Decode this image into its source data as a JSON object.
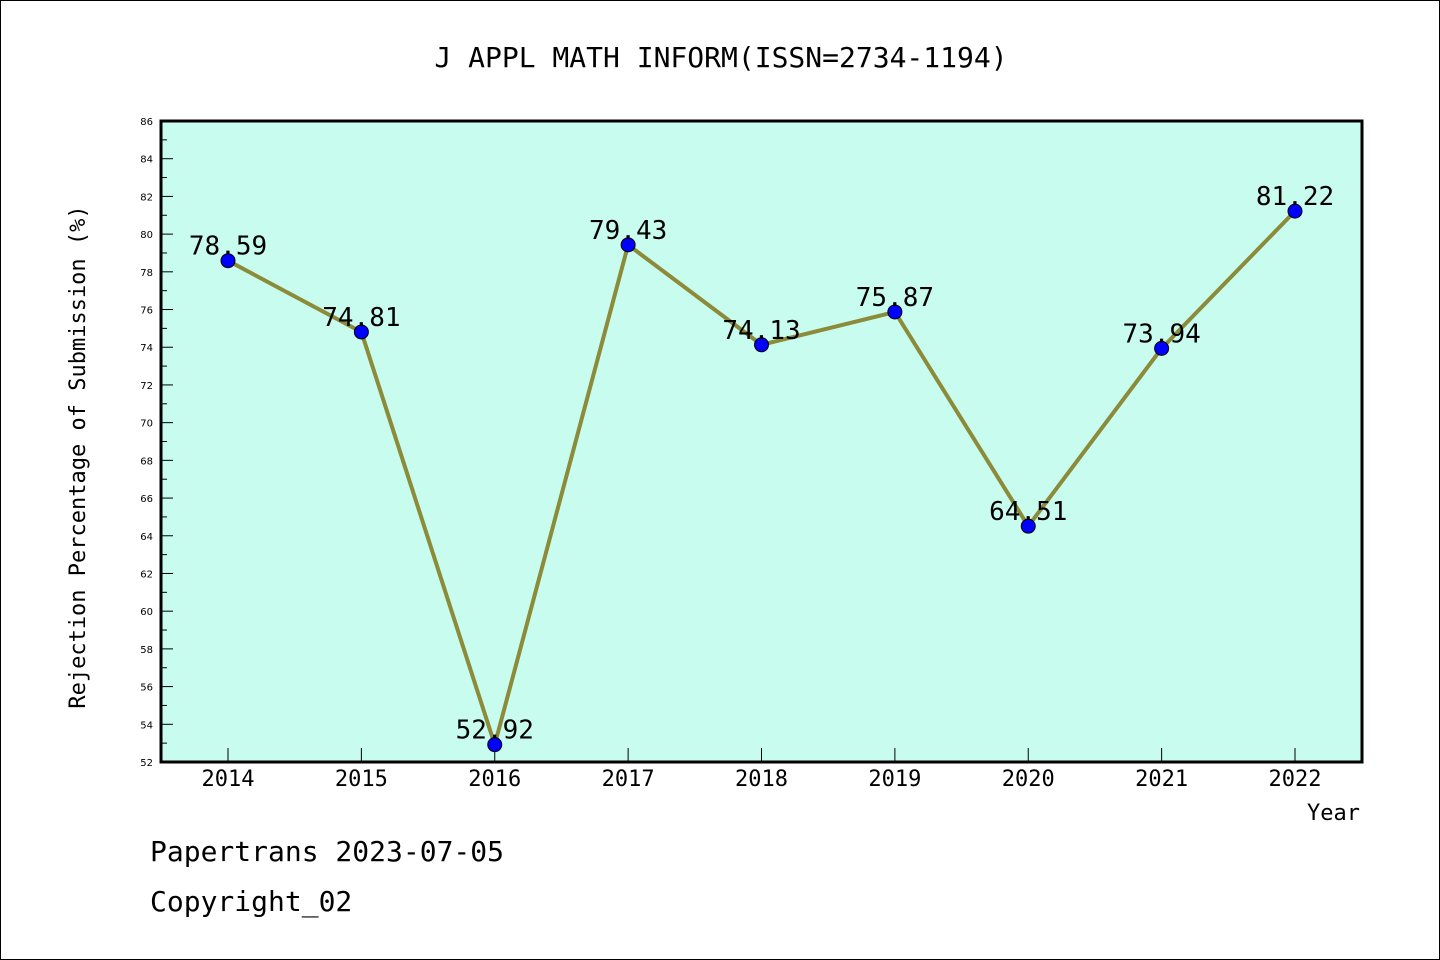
{
  "chart_data": {
    "type": "line",
    "title": "J APPL MATH INFORM(ISSN=2734-1194)",
    "xlabel": "Year",
    "ylabel": "Rejection Percentage of Submission (%)",
    "categories": [
      "2014",
      "2015",
      "2016",
      "2017",
      "2018",
      "2019",
      "2020",
      "2021",
      "2022"
    ],
    "series": [
      {
        "values": [
          78.59,
          74.81,
          52.92,
          79.43,
          74.13,
          75.87,
          64.51,
          73.94,
          81.22
        ],
        "labels": [
          "78.59",
          "74.81",
          "52.92",
          "79.43",
          "74.13",
          "75.87",
          "64.51",
          "73.94",
          "81.22"
        ]
      }
    ],
    "ylim": [
      52,
      86
    ],
    "yticks": [
      "52",
      "54",
      "56",
      "58",
      "60",
      "62",
      "64",
      "66",
      "68",
      "70",
      "72",
      "74",
      "76",
      "78",
      "80",
      "82",
      "84",
      "86"
    ],
    "grid": false,
    "legend": "none",
    "colors": {
      "plot_background": "#c8fcee",
      "line": "#8b8b3a",
      "marker": "#0000ff",
      "axis": "#000000"
    }
  },
  "footer": {
    "line1": "Papertrans 2023-07-05",
    "line2": "Copyright_02"
  }
}
